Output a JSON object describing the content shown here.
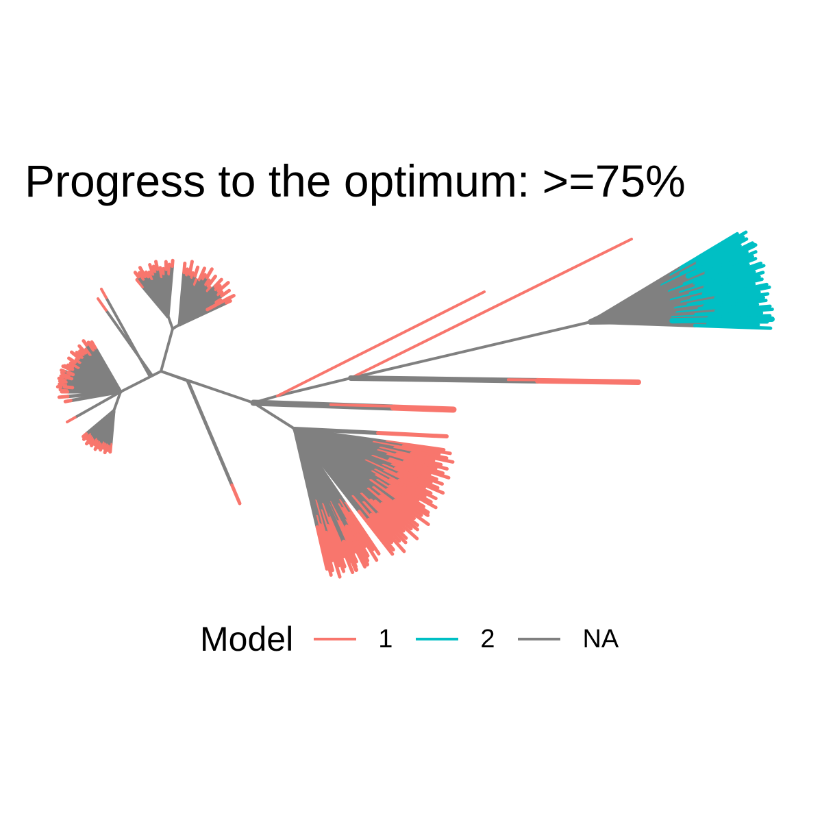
{
  "title": "Progress to the optimum: >=75%",
  "legend": {
    "title": "Model",
    "items": [
      {
        "label": "1",
        "color": "#F8766D"
      },
      {
        "label": "2",
        "color": "#00BFC4"
      },
      {
        "label": "NA",
        "color": "#808080"
      }
    ]
  },
  "colors": {
    "model_1": "#F8766D",
    "model_2": "#00BFC4",
    "na": "#808080"
  }
}
